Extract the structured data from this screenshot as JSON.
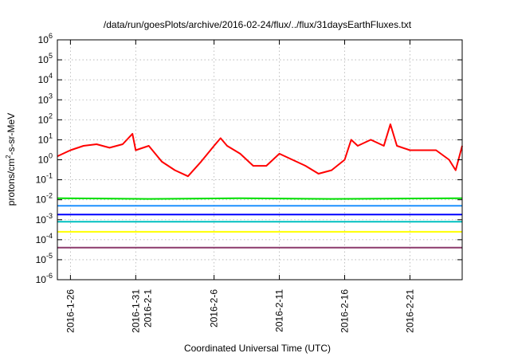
{
  "chart_data": {
    "type": "line",
    "title": "/data/run/goesPlots/archive/2016-02-24/flux/../flux/31daysEarthFluxes.txt",
    "xlabel": "Coordinated Universal Time (UTC)",
    "ylabel": {
      "base": "protons/cm",
      "sup": "2",
      "rest": "-s-sr-MeV"
    },
    "yscale": "log",
    "ylim_exp": [
      -6,
      6
    ],
    "xlim": [
      "2016-01-25",
      "2016-02-25"
    ],
    "grid": true,
    "ytick_exponents": [
      "-6",
      "-5",
      "-4",
      "-3",
      "-2",
      "-1",
      "0",
      "1",
      "2",
      "3",
      "4",
      "5",
      "6"
    ],
    "xticks": [
      {
        "date": "2016-01-26",
        "lines": [
          "2016-1-26"
        ]
      },
      {
        "date": "2016-01-31",
        "lines": [
          "2016-1-31",
          "2016-2-1"
        ]
      },
      {
        "date": "2016-02-06",
        "lines": [
          "2016-2-6"
        ]
      },
      {
        "date": "2016-02-11",
        "lines": [
          "2016-2-11"
        ]
      },
      {
        "date": "2016-02-16",
        "lines": [
          "2016-2-16"
        ]
      },
      {
        "date": "2016-02-21",
        "lines": [
          "2016-2-21"
        ]
      }
    ],
    "series": [
      {
        "color": "#ff0000",
        "points": [
          [
            "2016-01-25",
            1.5
          ],
          [
            "2016-01-26",
            3
          ],
          [
            "2016-01-27",
            5
          ],
          [
            "2016-01-28",
            6
          ],
          [
            "2016-01-29",
            4
          ],
          [
            "2016-01-30",
            6
          ],
          [
            "2016-01-30T18",
            20
          ],
          [
            "2016-01-31",
            3
          ],
          [
            "2016-02-01",
            5
          ],
          [
            "2016-02-02",
            0.8
          ],
          [
            "2016-02-03",
            0.3
          ],
          [
            "2016-02-04",
            0.15
          ],
          [
            "2016-02-05",
            0.8
          ],
          [
            "2016-02-06",
            5
          ],
          [
            "2016-02-06T12",
            12
          ],
          [
            "2016-02-07",
            5
          ],
          [
            "2016-02-08",
            2
          ],
          [
            "2016-02-09",
            0.5
          ],
          [
            "2016-02-10",
            0.5
          ],
          [
            "2016-02-11",
            2
          ],
          [
            "2016-02-12",
            1
          ],
          [
            "2016-02-13",
            0.5
          ],
          [
            "2016-02-14",
            0.2
          ],
          [
            "2016-02-15",
            0.3
          ],
          [
            "2016-02-16",
            1
          ],
          [
            "2016-02-16T12",
            10
          ],
          [
            "2016-02-17",
            5
          ],
          [
            "2016-02-18",
            10
          ],
          [
            "2016-02-19",
            5
          ],
          [
            "2016-02-19T12",
            60
          ],
          [
            "2016-02-20",
            5
          ],
          [
            "2016-02-21",
            3
          ],
          [
            "2016-02-22",
            3
          ],
          [
            "2016-02-23",
            3
          ],
          [
            "2016-02-24",
            1
          ],
          [
            "2016-02-24T12",
            0.3
          ],
          [
            "2016-02-25",
            5
          ]
        ]
      },
      {
        "color": "#00e000",
        "points": [
          [
            "2016-01-25",
            0.012
          ],
          [
            "2016-02-01",
            0.011
          ],
          [
            "2016-02-08",
            0.012
          ],
          [
            "2016-02-15",
            0.011
          ],
          [
            "2016-02-25",
            0.012
          ]
        ]
      },
      {
        "color": "#1e90ff",
        "points": [
          [
            "2016-01-25",
            0.005
          ],
          [
            "2016-02-25",
            0.005
          ]
        ]
      },
      {
        "color": "#0000ff",
        "points": [
          [
            "2016-01-25",
            0.0018
          ],
          [
            "2016-02-25",
            0.0018
          ]
        ]
      },
      {
        "color": "#00c0c0",
        "points": [
          [
            "2016-01-25",
            0.0008
          ],
          [
            "2016-02-25",
            0.0008
          ]
        ]
      },
      {
        "color": "#ffff00",
        "points": [
          [
            "2016-01-25",
            0.00025
          ],
          [
            "2016-02-25",
            0.00025
          ]
        ]
      },
      {
        "color": "#8b3a6b",
        "points": [
          [
            "2016-01-25",
            4e-05
          ],
          [
            "2016-02-25",
            4e-05
          ]
        ]
      }
    ]
  }
}
